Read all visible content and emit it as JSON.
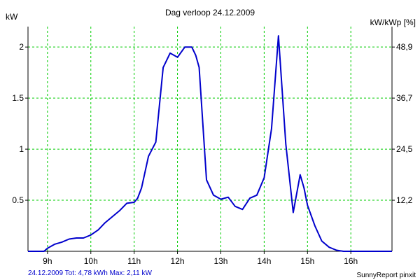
{
  "colors": {
    "series": "#0000cc",
    "grid": "#00cc00",
    "axis": "#000000",
    "background": "#ffffff",
    "footer_left": "#0000cc"
  },
  "chart_data": {
    "type": "line",
    "title": "Dag  verloop 24.12.2009",
    "ylabel_left": "kW",
    "ylabel_right": "kW/kWp [%]",
    "footer_left": "24.12.2009 Tot: 4,78 kWh Max: 2,11 kW",
    "footer_right": "SunnyReport pinxit",
    "grid": true,
    "xlim": [
      8.55,
      16.95
    ],
    "ylim": [
      0,
      2.2
    ],
    "x_ticks": [
      9,
      10,
      11,
      12,
      13,
      14,
      15,
      16
    ],
    "x_tick_labels": [
      "9h",
      "10h",
      "11h",
      "12h",
      "13h",
      "14h",
      "15h",
      "16h"
    ],
    "y_ticks": [
      0.5,
      1,
      1.5,
      2
    ],
    "y_tick_labels": [
      "0.5",
      "1",
      "1.5",
      "2"
    ],
    "y2_ticks": [
      0.5,
      1,
      1.5,
      2
    ],
    "y2_tick_labels": [
      "12,2",
      "24,5",
      "36,7",
      "48,9"
    ],
    "series": [
      {
        "x": [
          8.55,
          8.92,
          9.0,
          9.17,
          9.33,
          9.5,
          9.67,
          9.83,
          10.0,
          10.17,
          10.33,
          10.5,
          10.67,
          10.83,
          11.0,
          11.08,
          11.17,
          11.33,
          11.5,
          11.67,
          11.83,
          12.0,
          12.17,
          12.33,
          12.42,
          12.5,
          12.67,
          12.83,
          13.0,
          13.17,
          13.33,
          13.5,
          13.67,
          13.83,
          14.0,
          14.17,
          14.33,
          14.5,
          14.67,
          14.83,
          14.92,
          15.0,
          15.17,
          15.33,
          15.5,
          15.67,
          15.83,
          16.0,
          16.17,
          16.5,
          16.95
        ],
        "y": [
          0.0,
          0.0,
          0.03,
          0.07,
          0.09,
          0.12,
          0.13,
          0.13,
          0.16,
          0.21,
          0.28,
          0.34,
          0.4,
          0.47,
          0.48,
          0.52,
          0.62,
          0.93,
          1.07,
          1.8,
          1.94,
          1.9,
          2.0,
          2.0,
          1.92,
          1.8,
          0.7,
          0.55,
          0.51,
          0.53,
          0.44,
          0.41,
          0.52,
          0.55,
          0.72,
          1.2,
          2.11,
          1.05,
          0.38,
          0.75,
          0.62,
          0.45,
          0.25,
          0.1,
          0.04,
          0.01,
          0.0,
          0.0,
          0.0,
          0.0,
          0.0
        ]
      }
    ]
  }
}
